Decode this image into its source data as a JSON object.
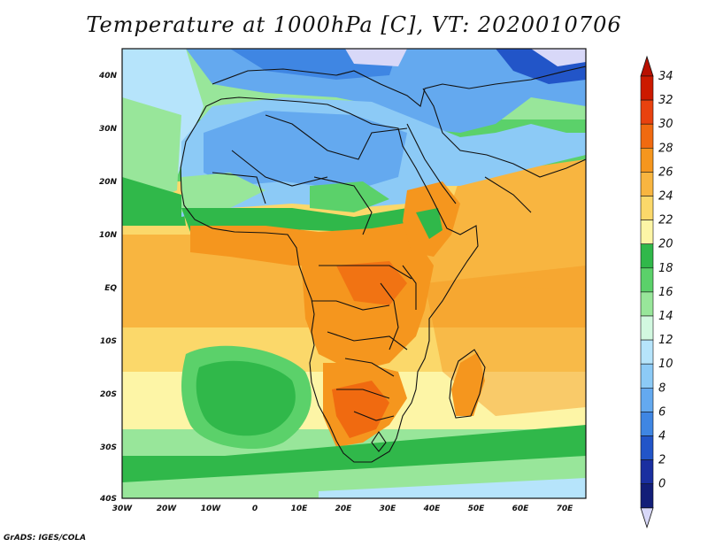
{
  "title": "Temperature at 1000hPa [C], VT: 2020010706",
  "footer": "GrADS: IGES/COLA",
  "map": {
    "lon_labels": [
      "30W",
      "20W",
      "10W",
      "0",
      "10E",
      "20E",
      "30E",
      "40E",
      "50E",
      "60E",
      "70E"
    ],
    "lat_labels": [
      "40N",
      "30N",
      "20N",
      "10N",
      "EQ",
      "10S",
      "20S",
      "30S",
      "40S"
    ]
  },
  "colorbar": {
    "levels": [
      "34",
      "32",
      "30",
      "28",
      "26",
      "24",
      "22",
      "20",
      "18",
      "16",
      "14",
      "12",
      "10",
      "8",
      "6",
      "4",
      "2",
      "0"
    ],
    "colors": [
      "#cc1a00",
      "#e8420f",
      "#f06a10",
      "#f5961e",
      "#f8b540",
      "#fbd86a",
      "#fdf5a6",
      "#30b84a",
      "#5bd16a",
      "#98e69a",
      "#d2f8e0",
      "#b6e4fb",
      "#8ccaf6",
      "#64a9ef",
      "#3f86e3",
      "#2255c8",
      "#1a2fa0",
      "#121e78"
    ],
    "top_color": "#b81000",
    "bottom_color": "#d8d8f8"
  },
  "legend_colors": {
    "ocean_north": "#fbd86a",
    "ocean_south": "#5bd16a",
    "sahara": "#64a9ef"
  }
}
